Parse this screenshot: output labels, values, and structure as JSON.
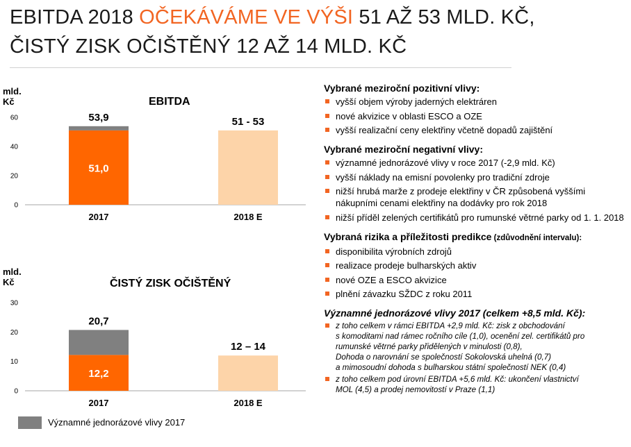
{
  "header": {
    "line1_start": "EBITDA 2018 ",
    "line1_highlight": "OČEKÁVÁME VE VÝŠI",
    "line1_end": " 51 AŽ 53 MLD. KČ,",
    "line2": "ČISTÝ ZISK OČIŠTĚNÝ 12 AŽ 14 MLD. KČ"
  },
  "chart_data": [
    {
      "type": "bar",
      "title": "EBITDA",
      "ylabel": "mld. Kč",
      "ylim": [
        0,
        60
      ],
      "yticks": [
        0,
        20,
        40,
        60
      ],
      "categories": [
        "2017",
        "2018 E"
      ],
      "series": [
        {
          "values": [
            51.0,
            null
          ],
          "color": "#ff6600"
        },
        {
          "name": "Významné jednorázové vlivy 2017",
          "values": [
            2.9,
            null
          ],
          "color": "#808080"
        },
        {
          "values": [
            null,
            51
          ],
          "color": "#fdd4a9",
          "range_upper": [
            null,
            53
          ]
        }
      ],
      "total_labels": [
        "53,9",
        "51 - 53"
      ],
      "inner_labels": [
        "51,0",
        ""
      ]
    },
    {
      "type": "bar",
      "title": "ČISTÝ ZISK OČIŠTĚNÝ",
      "ylabel": "mld. Kč",
      "ylim": [
        0,
        30
      ],
      "yticks": [
        0,
        10,
        20,
        30
      ],
      "categories": [
        "2017",
        "2018 E"
      ],
      "series": [
        {
          "values": [
            12.2,
            null
          ],
          "color": "#ff6600"
        },
        {
          "name": "Významné jednorázové vlivy 2017",
          "values": [
            8.5,
            null
          ],
          "color": "#808080"
        },
        {
          "values": [
            null,
            12
          ],
          "color": "#fdd4a9",
          "range_upper": [
            null,
            14
          ]
        }
      ],
      "total_labels": [
        "20,7",
        "12 – 14"
      ],
      "inner_labels": [
        "12,2",
        ""
      ]
    }
  ],
  "legend": {
    "label": "Významné jednorázové vlivy 2017",
    "color": "#808080"
  },
  "right_panel": {
    "positive": {
      "heading": "Vybrané meziroční pozitivní vlivy:",
      "items": [
        "vyšší objem výroby jaderných elektráren",
        "nové akvizice v oblasti ESCO a OZE",
        "vyšší realizační ceny elektřiny včetně dopadů zajištění"
      ]
    },
    "negative": {
      "heading": "Vybrané meziroční negativní vlivy:",
      "items": [
        "významné jednorázové vlivy v roce 2017 (-2,9 mld. Kč)",
        "vyšší náklady na emisní povolenky pro tradiční zdroje",
        "nižší hrubá marže z prodeje elektřiny v ČR způsobená vyššími nákupními cenami elektřiny na dodávky pro rok 2018",
        "nižší příděl zelených certifikátů pro rumunské větrné parky od 1. 1. 2018"
      ]
    },
    "risks": {
      "heading": "Vybraná rizika a příležitosti predikce",
      "heading_small": " (zdůvodnění intervalu):",
      "items": [
        "disponibilita výrobních zdrojů",
        "realizace prodeje bulharských aktiv",
        "nové OZE a ESCO akvizice",
        "plnění závazku SŽDC z roku 2011"
      ]
    },
    "oneoff": {
      "heading": "Významné jednorázové vlivy 2017 (celkem +8,5 mld. Kč):",
      "items": [
        "z toho celkem v rámci EBITDA +2,9 mld. Kč: zisk z obchodování\ns komoditami nad rámec ročního cíle (1,0), ocenění zel. certifikátů pro\nrumunské větrné parky přidělených v minulosti (0,8),\nDohoda o narovnání se společností Sokolovská uhelná (0,7)\na mimosoudní dohoda s bulharskou státní společností NEK (0,4)",
        "z toho celkem pod úrovní EBITDA +5,6 mld. Kč: ukončení vlastnictví\nMOL (4,5) a prodej nemovitostí v Praze (1,1)"
      ]
    }
  }
}
